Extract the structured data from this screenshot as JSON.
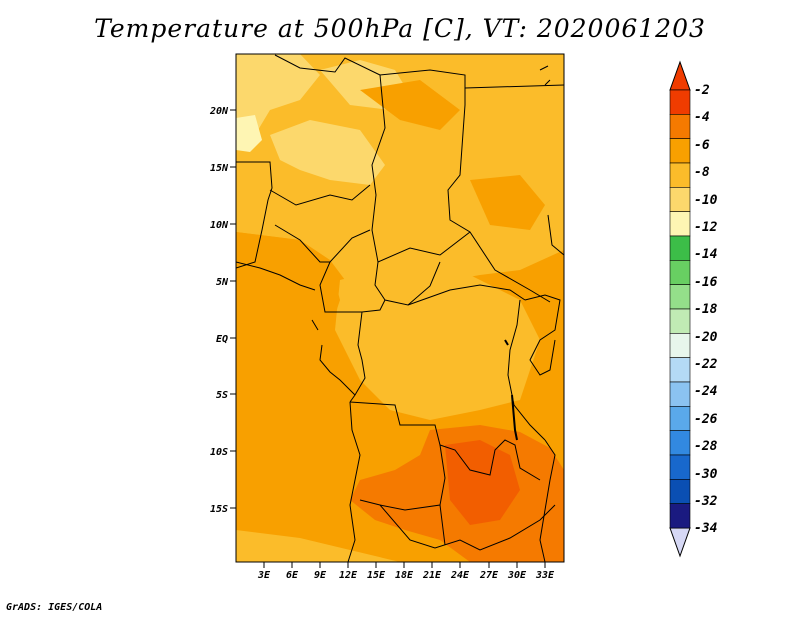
{
  "map": {
    "title": "Temperature at 500hPa [C], VT: 2020061203",
    "credit": "GrADS: IGES/COLA",
    "lat_labels": [
      "20N",
      "15N",
      "10N",
      "5N",
      "EQ",
      "5S",
      "10S",
      "15S"
    ],
    "lon_labels": [
      "3E",
      "6E",
      "9E",
      "12E",
      "15E",
      "18E",
      "21E",
      "24E",
      "27E",
      "30E",
      "33E"
    ],
    "colorbar": {
      "labels": [
        "-2",
        "-4",
        "-6",
        "-8",
        "-10",
        "-12",
        "-14",
        "-16",
        "-18",
        "-20",
        "-22",
        "-24",
        "-26",
        "-28",
        "-30",
        "-32",
        "-34"
      ],
      "colors": [
        "#f03c00",
        "#f57a00",
        "#f8a000",
        "#fbbc2a",
        "#fcd86c",
        "#fef5b3",
        "#3cbd48",
        "#68cf62",
        "#94df8a",
        "#c0ebb4",
        "#e7f6ec",
        "#b4daf5",
        "#8bc3f1",
        "#5aa9ea",
        "#3289e0",
        "#1868cc",
        "#0a4fb3",
        "#1a1a80"
      ],
      "top_triangle_color": "#f03c00",
      "bottom_triangle_color": "#d6d8f5"
    },
    "palette": {
      "dominant": "#f8a000",
      "warm": "#f57a00",
      "hot": "#f03c00",
      "cool": "#fbbc2a",
      "coolest": "#fcd86c",
      "lightest": "#fef5b3"
    }
  }
}
